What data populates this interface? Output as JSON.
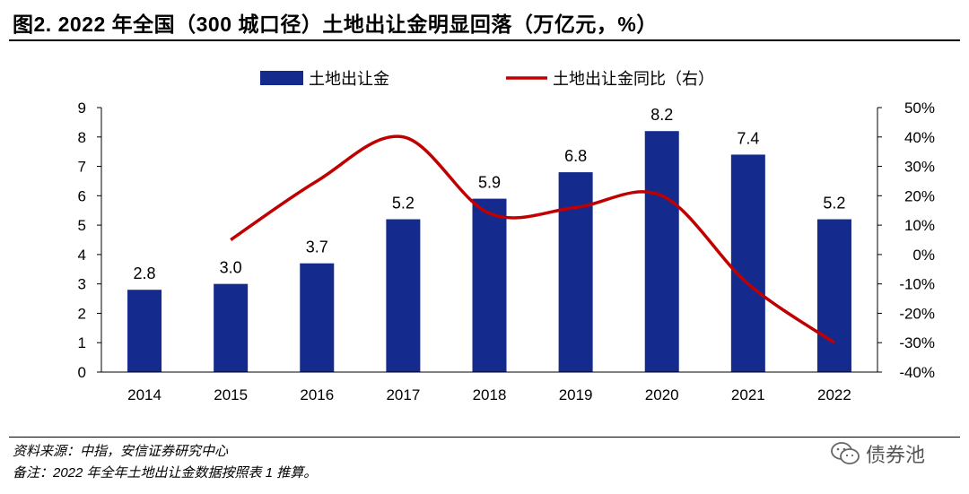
{
  "figure": {
    "title": "图2. 2022 年全国（300 城口径）土地出让金明显回落（万亿元，%）",
    "source": "资料来源：中指，安信证券研究中心",
    "note": "备注：2022 年全年土地出让金数据按照表 1 推算。",
    "watermark": "债券池"
  },
  "chart_data": {
    "type": "bar+line",
    "title": "2022 年全国（300 城口径）土地出让金明显回落（万亿元，%）",
    "categories": [
      "2014",
      "2015",
      "2016",
      "2017",
      "2018",
      "2019",
      "2020",
      "2021",
      "2022"
    ],
    "series": [
      {
        "name": "土地出让金",
        "type": "bar",
        "axis": "left",
        "color": "#142a8c",
        "values": [
          2.8,
          3.0,
          3.7,
          5.2,
          5.9,
          6.8,
          8.2,
          7.4,
          5.2
        ],
        "labels": [
          "2.8",
          "3.0",
          "3.7",
          "5.2",
          "5.9",
          "6.8",
          "8.2",
          "7.4",
          "5.2"
        ]
      },
      {
        "name": "土地出让金同比（右）",
        "type": "line",
        "axis": "right",
        "color": "#c00000",
        "values": [
          null,
          5,
          25,
          40,
          14,
          16,
          20,
          -10,
          -30
        ]
      }
    ],
    "y_left": {
      "min": 0,
      "max": 9,
      "ticks": [
        "0",
        "1",
        "2",
        "3",
        "4",
        "5",
        "6",
        "7",
        "8",
        "9"
      ]
    },
    "y_right": {
      "min": -40,
      "max": 50,
      "ticks": [
        "-40%",
        "-30%",
        "-20%",
        "-10%",
        "0%",
        "10%",
        "20%",
        "30%",
        "40%",
        "50%"
      ]
    },
    "legend": [
      "土地出让金",
      "土地出让金同比（右）"
    ],
    "grid": false
  }
}
